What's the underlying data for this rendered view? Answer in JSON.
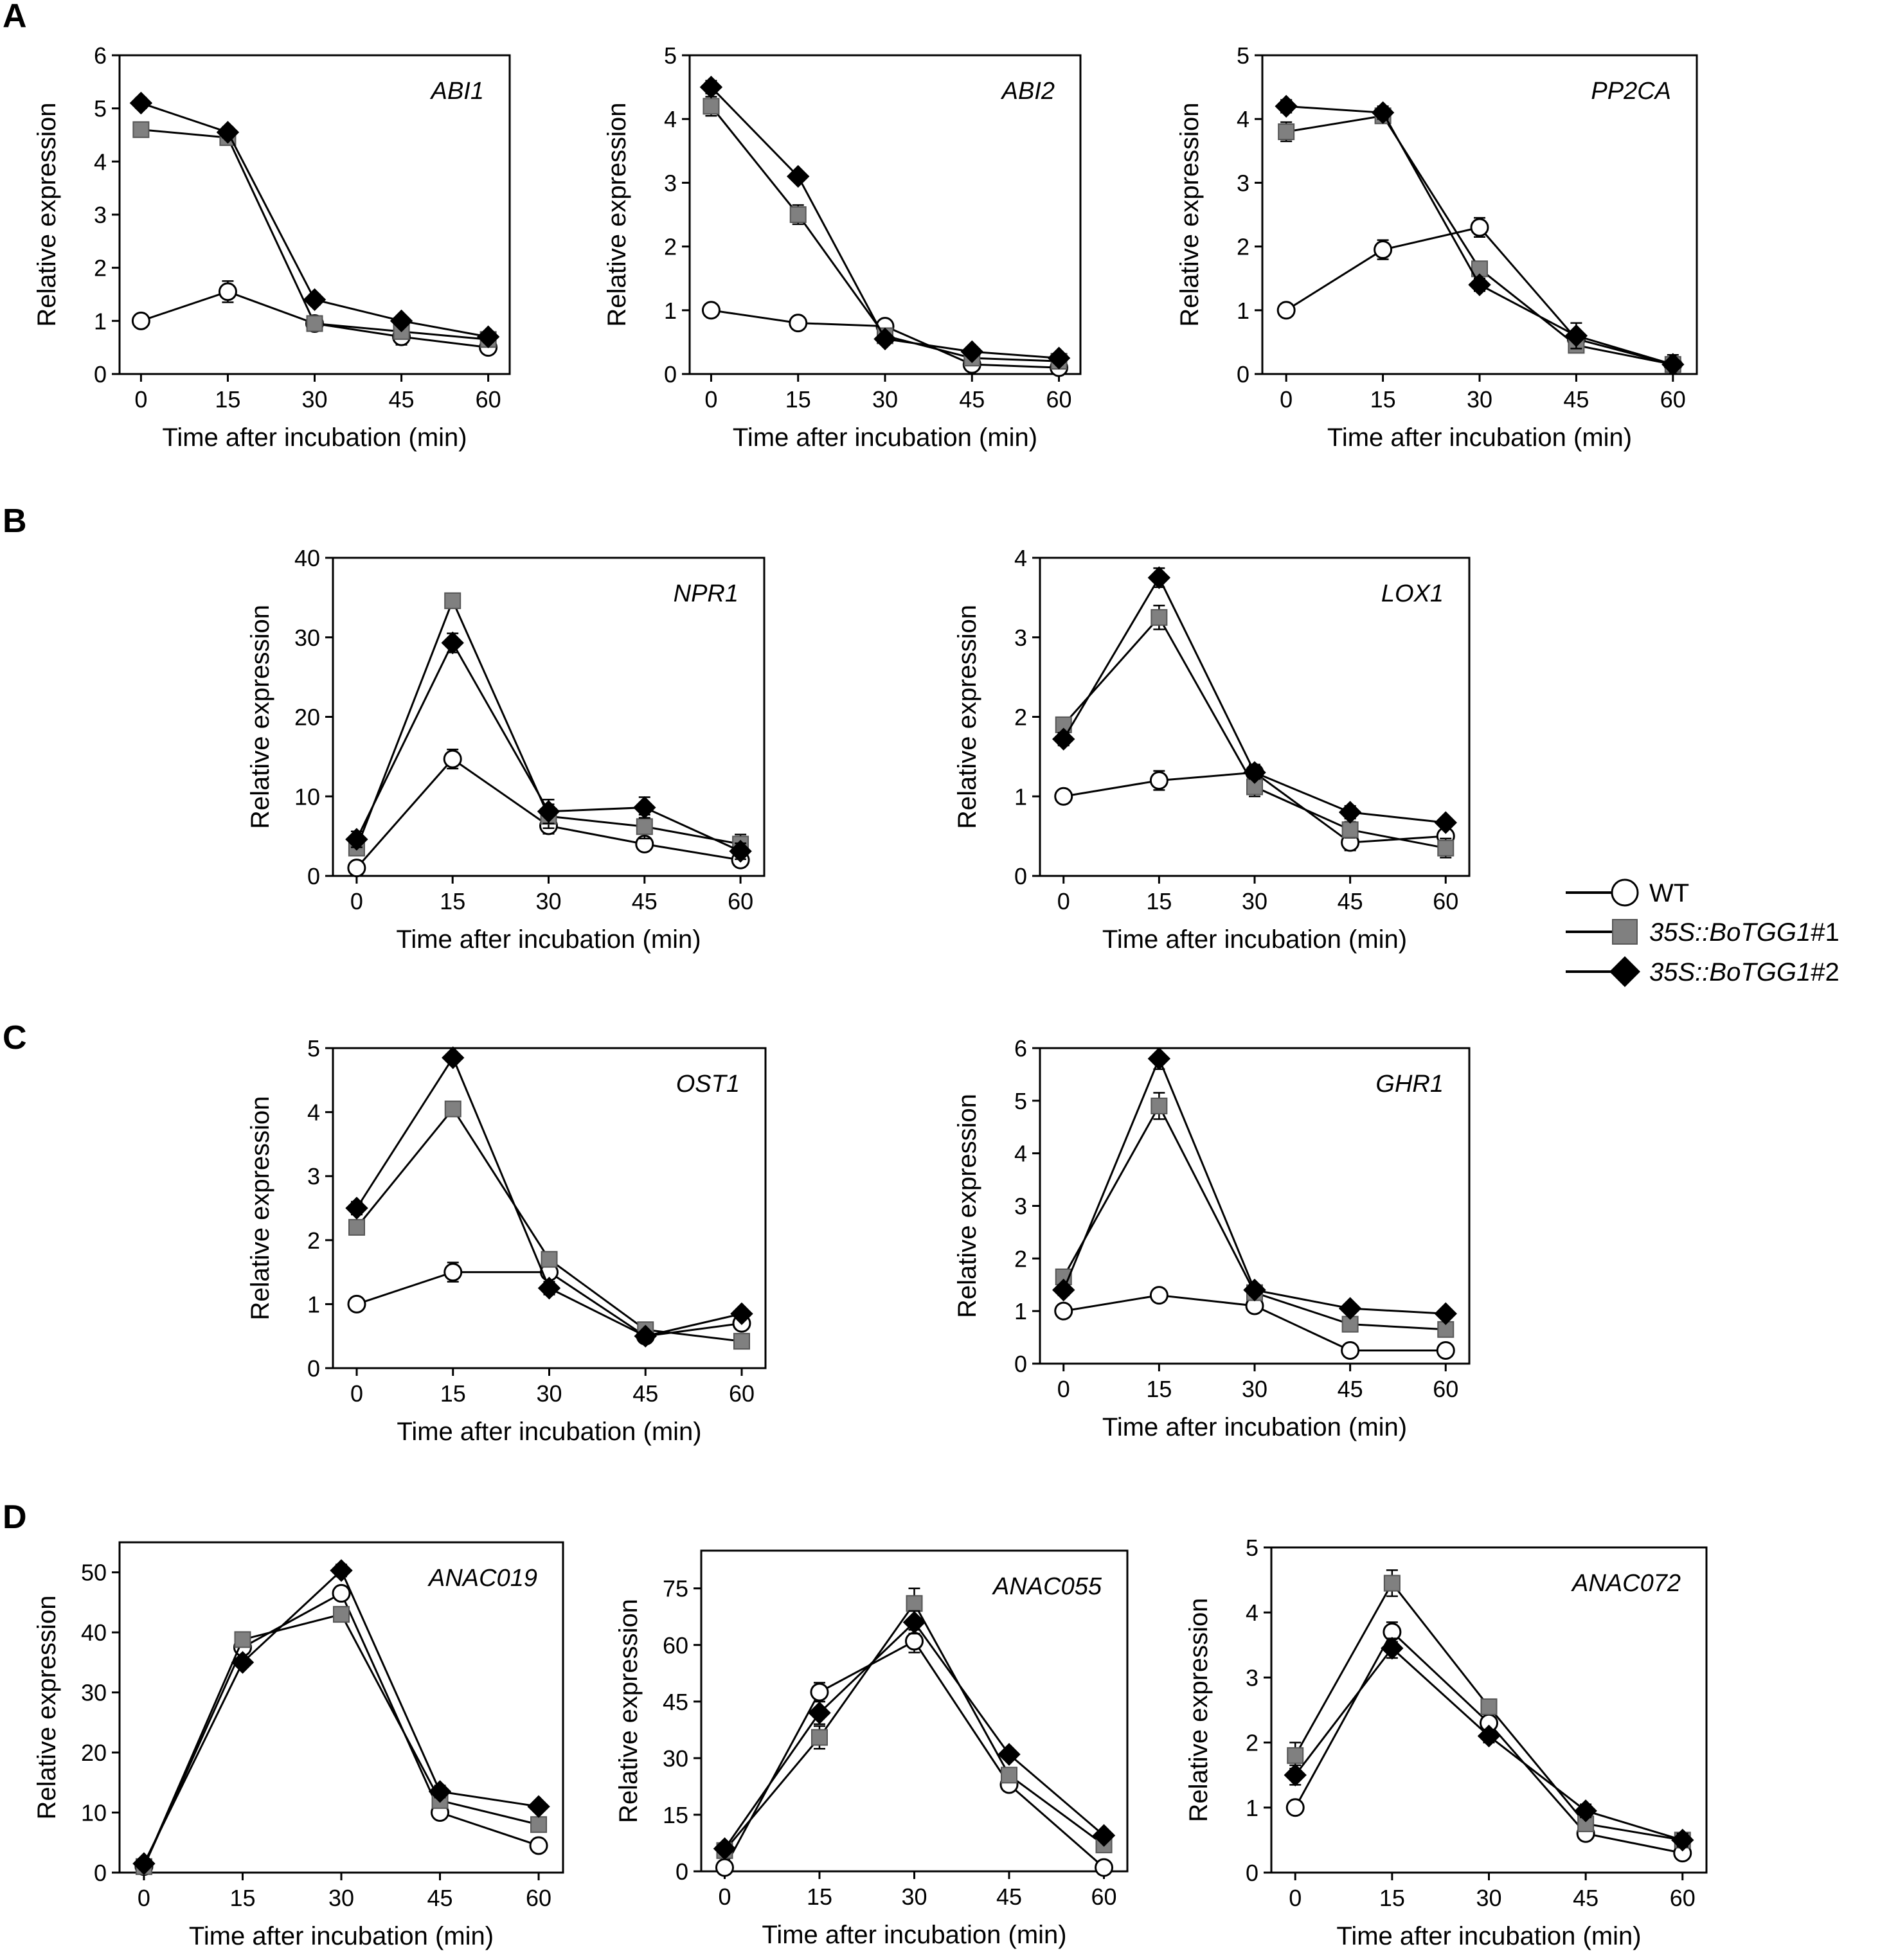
{
  "figure": {
    "x_axis_title": "Time after incubation (min)",
    "y_axis_title": "Relative expression",
    "panel_labels": [
      "A",
      "B",
      "C",
      "D"
    ]
  },
  "legend": {
    "entries": [
      {
        "series": "WT",
        "label_main": "WT",
        "label_suffix": "",
        "marker": "circle",
        "fill": "#ffffff"
      },
      {
        "series": "35S::BoTGG1#1",
        "label_main": "35S::BoTGG1",
        "label_suffix": "#1",
        "marker": "square",
        "fill": "#808080"
      },
      {
        "series": "35S::BoTGG1#2",
        "label_main": "35S::BoTGG1",
        "label_suffix": "#2",
        "marker": "diamond",
        "fill": "#000000"
      }
    ]
  },
  "chart_data": [
    {
      "type": "line",
      "panel": "A",
      "title": "ABI1",
      "xlabel": "Time after incubation (min)",
      "ylabel": "Relative expression",
      "x": [
        0,
        15,
        30,
        45,
        60
      ],
      "xticks": [
        0,
        15,
        30,
        45,
        60
      ],
      "ylim": [
        0,
        6
      ],
      "yticks": [
        0,
        1,
        2,
        3,
        4,
        5,
        6
      ],
      "series": [
        {
          "name": "WT",
          "values": [
            1.0,
            1.55,
            0.95,
            0.7,
            0.5
          ],
          "errors": [
            0.05,
            0.2,
            0.05,
            0.15,
            0.1
          ]
        },
        {
          "name": "35S::BoTGG1#1",
          "values": [
            4.6,
            4.45,
            0.95,
            0.8,
            0.65
          ],
          "errors": [
            0.05,
            0.1,
            0.1,
            0.1,
            0.05
          ]
        },
        {
          "name": "35S::BoTGG1#2",
          "values": [
            5.1,
            4.55,
            1.4,
            1.0,
            0.7
          ],
          "errors": [
            0.1,
            0.1,
            0.1,
            0.05,
            0.05
          ]
        }
      ]
    },
    {
      "type": "line",
      "panel": "A",
      "title": "ABI2",
      "xlabel": "Time after incubation (min)",
      "ylabel": "Relative expression",
      "x": [
        0,
        15,
        30,
        45,
        60
      ],
      "xticks": [
        0,
        15,
        30,
        45,
        60
      ],
      "ylim": [
        0,
        5
      ],
      "yticks": [
        0,
        1,
        2,
        3,
        4,
        5
      ],
      "series": [
        {
          "name": "WT",
          "values": [
            1.0,
            0.8,
            0.75,
            0.15,
            0.1
          ],
          "errors": [
            0.05,
            0.1,
            0.1,
            0.05,
            0.05
          ]
        },
        {
          "name": "35S::BoTGG1#1",
          "values": [
            4.2,
            2.5,
            0.6,
            0.25,
            0.2
          ],
          "errors": [
            0.15,
            0.15,
            0.1,
            0.05,
            0.05
          ]
        },
        {
          "name": "35S::BoTGG1#2",
          "values": [
            4.5,
            3.1,
            0.55,
            0.35,
            0.25
          ],
          "errors": [
            0.1,
            0.05,
            0.05,
            0.05,
            0.05
          ]
        }
      ]
    },
    {
      "type": "line",
      "panel": "A",
      "title": "PP2CA",
      "xlabel": "Time after incubation (min)",
      "ylabel": "Relative expression",
      "x": [
        0,
        15,
        30,
        45,
        60
      ],
      "xticks": [
        0,
        15,
        30,
        45,
        60
      ],
      "ylim": [
        0,
        5
      ],
      "yticks": [
        0,
        1,
        2,
        3,
        4,
        5
      ],
      "series": [
        {
          "name": "WT",
          "values": [
            1.0,
            1.95,
            2.3,
            0.55,
            0.15
          ],
          "errors": [
            0.05,
            0.15,
            0.15,
            0.1,
            0.05
          ]
        },
        {
          "name": "35S::BoTGG1#1",
          "values": [
            3.8,
            4.05,
            1.65,
            0.45,
            0.15
          ],
          "errors": [
            0.15,
            0.1,
            0.1,
            0.05,
            0.05
          ]
        },
        {
          "name": "35S::BoTGG1#2",
          "values": [
            4.2,
            4.1,
            1.4,
            0.6,
            0.15
          ],
          "errors": [
            0.1,
            0.1,
            0.1,
            0.2,
            0.15
          ]
        }
      ]
    },
    {
      "type": "line",
      "panel": "B",
      "title": "NPR1",
      "xlabel": "Time after incubation (min)",
      "ylabel": "Relative expression",
      "x": [
        0,
        15,
        30,
        45,
        60
      ],
      "xticks": [
        0,
        15,
        30,
        45,
        60
      ],
      "ylim": [
        0,
        40
      ],
      "yticks": [
        0,
        10,
        20,
        30,
        40
      ],
      "series": [
        {
          "name": "WT",
          "values": [
            1.0,
            14.7,
            6.3,
            4.0,
            2.0
          ],
          "errors": [
            0.3,
            1.2,
            1.0,
            0.8,
            0.8
          ]
        },
        {
          "name": "35S::BoTGG1#1",
          "values": [
            3.5,
            34.6,
            7.5,
            6.2,
            4.0
          ],
          "errors": [
            0.8,
            0.8,
            1.5,
            1.5,
            1.2
          ]
        },
        {
          "name": "35S::BoTGG1#2",
          "values": [
            4.6,
            29.3,
            8.1,
            8.6,
            3.1
          ],
          "errors": [
            1.0,
            1.2,
            1.5,
            1.3,
            1.0
          ]
        }
      ]
    },
    {
      "type": "line",
      "panel": "B",
      "title": "LOX1",
      "xlabel": "Time after incubation (min)",
      "ylabel": "Relative expression",
      "x": [
        0,
        15,
        30,
        45,
        60
      ],
      "xticks": [
        0,
        15,
        30,
        45,
        60
      ],
      "ylim": [
        0,
        4
      ],
      "yticks": [
        0,
        1,
        2,
        3,
        4
      ],
      "series": [
        {
          "name": "WT",
          "values": [
            1.0,
            1.2,
            1.3,
            0.42,
            0.5
          ],
          "errors": [
            0.05,
            0.12,
            0.1,
            0.1,
            0.08
          ]
        },
        {
          "name": "35S::BoTGG1#1",
          "values": [
            1.9,
            3.25,
            1.12,
            0.58,
            0.35
          ],
          "errors": [
            0.05,
            0.15,
            0.12,
            0.1,
            0.12
          ]
        },
        {
          "name": "35S::BoTGG1#2",
          "values": [
            1.72,
            3.75,
            1.3,
            0.8,
            0.67
          ],
          "errors": [
            0.08,
            0.12,
            0.08,
            0.08,
            0.05
          ]
        }
      ]
    },
    {
      "type": "line",
      "panel": "C",
      "title": "OST1",
      "xlabel": "Time after incubation (min)",
      "ylabel": "Relative expression",
      "x": [
        0,
        15,
        30,
        45,
        60
      ],
      "xticks": [
        0,
        15,
        30,
        45,
        60
      ],
      "ylim": [
        0,
        5
      ],
      "yticks": [
        0,
        1,
        2,
        3,
        4,
        5
      ],
      "series": [
        {
          "name": "WT",
          "values": [
            1.0,
            1.5,
            1.5,
            0.5,
            0.7
          ],
          "errors": [
            0.05,
            0.15,
            0.05,
            0.1,
            0.05
          ]
        },
        {
          "name": "35S::BoTGG1#1",
          "values": [
            2.2,
            4.05,
            1.7,
            0.6,
            0.42
          ],
          "errors": [
            0.1,
            0.05,
            0.05,
            0.1,
            0.05
          ]
        },
        {
          "name": "35S::BoTGG1#2",
          "values": [
            2.5,
            4.85,
            1.25,
            0.5,
            0.85
          ],
          "errors": [
            0.1,
            0.05,
            0.1,
            0.05,
            0.05
          ]
        }
      ]
    },
    {
      "type": "line",
      "panel": "C",
      "title": "GHR1",
      "xlabel": "Time after incubation (min)",
      "ylabel": "Relative expression",
      "x": [
        0,
        15,
        30,
        45,
        60
      ],
      "xticks": [
        0,
        15,
        30,
        45,
        60
      ],
      "ylim": [
        0,
        6
      ],
      "yticks": [
        0,
        1,
        2,
        3,
        4,
        5,
        6
      ],
      "series": [
        {
          "name": "WT",
          "values": [
            1.0,
            1.3,
            1.1,
            0.25,
            0.25
          ],
          "errors": [
            0.05,
            0.05,
            0.1,
            0.05,
            0.05
          ]
        },
        {
          "name": "35S::BoTGG1#1",
          "values": [
            1.65,
            4.9,
            1.35,
            0.75,
            0.65
          ],
          "errors": [
            0.1,
            0.25,
            0.1,
            0.1,
            0.1
          ]
        },
        {
          "name": "35S::BoTGG1#2",
          "values": [
            1.4,
            5.8,
            1.4,
            1.05,
            0.95
          ],
          "errors": [
            0.1,
            0.2,
            0.1,
            0.05,
            0.05
          ]
        }
      ]
    },
    {
      "type": "line",
      "panel": "D",
      "title": "ANAC019",
      "xlabel": "Time after incubation (min)",
      "ylabel": "Relative expression",
      "x": [
        0,
        15,
        30,
        45,
        60
      ],
      "xticks": [
        0,
        15,
        30,
        45,
        60
      ],
      "ylim": [
        0,
        55
      ],
      "yticks": [
        0,
        10,
        20,
        30,
        40,
        50
      ],
      "series": [
        {
          "name": "WT",
          "values": [
            1.0,
            37.5,
            46.5,
            10.0,
            4.5
          ],
          "errors": [
            0.5,
            1.0,
            1.0,
            1.0,
            0.5
          ]
        },
        {
          "name": "35S::BoTGG1#1",
          "values": [
            1.0,
            38.8,
            43.0,
            12.0,
            8.0
          ],
          "errors": [
            0.5,
            1.2,
            1.2,
            1.0,
            0.8
          ]
        },
        {
          "name": "35S::BoTGG1#2",
          "values": [
            1.5,
            35.0,
            50.3,
            13.5,
            11.0
          ],
          "errors": [
            0.5,
            0.5,
            1.0,
            1.0,
            0.5
          ]
        }
      ]
    },
    {
      "type": "line",
      "panel": "D",
      "title": "ANAC055",
      "xlabel": "Time after incubation (min)",
      "ylabel": "Relative expression",
      "x": [
        0,
        15,
        30,
        45,
        60
      ],
      "xticks": [
        0,
        15,
        30,
        45,
        60
      ],
      "ylim": [
        0,
        85
      ],
      "yticks": [
        0,
        15,
        30,
        45,
        60,
        75
      ],
      "series": [
        {
          "name": "WT",
          "values": [
            1.0,
            47.5,
            61.0,
            23.0,
            1.0
          ],
          "errors": [
            0.5,
            2.5,
            3.0,
            1.0,
            0.5
          ]
        },
        {
          "name": "35S::BoTGG1#1",
          "values": [
            5.5,
            35.5,
            71.0,
            25.5,
            7.0
          ],
          "errors": [
            1.0,
            3.0,
            4.0,
            1.5,
            1.5
          ]
        },
        {
          "name": "35S::BoTGG1#2",
          "values": [
            6.0,
            42.0,
            66.0,
            31.0,
            9.5
          ],
          "errors": [
            1.0,
            3.0,
            3.0,
            1.0,
            1.0
          ]
        }
      ]
    },
    {
      "type": "line",
      "panel": "D",
      "title": "ANAC072",
      "xlabel": "Time after incubation (min)",
      "ylabel": "Relative expression",
      "x": [
        0,
        15,
        30,
        45,
        60
      ],
      "xticks": [
        0,
        15,
        30,
        45,
        60
      ],
      "ylim": [
        0,
        5
      ],
      "yticks": [
        0,
        1,
        2,
        3,
        4,
        5
      ],
      "series": [
        {
          "name": "WT",
          "values": [
            1.0,
            3.7,
            2.3,
            0.6,
            0.3
          ],
          "errors": [
            0.05,
            0.15,
            0.1,
            0.1,
            0.05
          ]
        },
        {
          "name": "35S::BoTGG1#1",
          "values": [
            1.8,
            4.45,
            2.55,
            0.75,
            0.5
          ],
          "errors": [
            0.2,
            0.2,
            0.1,
            0.1,
            0.1
          ]
        },
        {
          "name": "35S::BoTGG1#2",
          "values": [
            1.5,
            3.45,
            2.1,
            0.95,
            0.5
          ],
          "errors": [
            0.15,
            0.15,
            0.1,
            0.1,
            0.1
          ]
        }
      ]
    }
  ]
}
